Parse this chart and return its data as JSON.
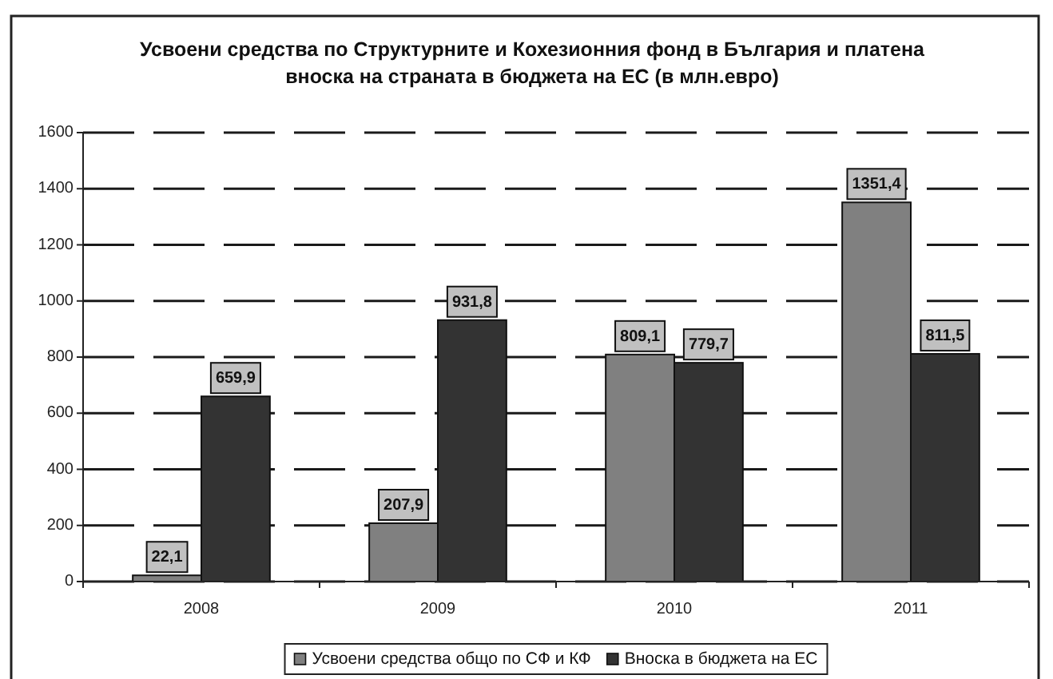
{
  "chart_data": {
    "type": "bar",
    "title": "Усвоени средства по Структурните и Кохезионния фонд в България и платена вноска на страната в бюджета на ЕС (в млн.евро)",
    "categories": [
      "2008",
      "2009",
      "2010",
      "2011"
    ],
    "series": [
      {
        "name": "Усвоени средства общо по СФ и КФ",
        "color": "#808080",
        "values": [
          22.1,
          207.9,
          809.1,
          1351.4
        ],
        "value_labels": [
          "22,1",
          "207,9",
          "809,1",
          "1351,4"
        ]
      },
      {
        "name": "Вноска в бюджета на ЕС",
        "color": "#333333",
        "values": [
          659.9,
          931.8,
          779.7,
          811.5
        ],
        "value_labels": [
          "659,9",
          "931,8",
          "779,7",
          "811,5"
        ]
      }
    ],
    "ylim": [
      0,
      1600
    ],
    "yticks": [
      0,
      200,
      400,
      600,
      800,
      1000,
      1200,
      1400,
      1600
    ],
    "grid": "y",
    "legend": "bottom"
  }
}
